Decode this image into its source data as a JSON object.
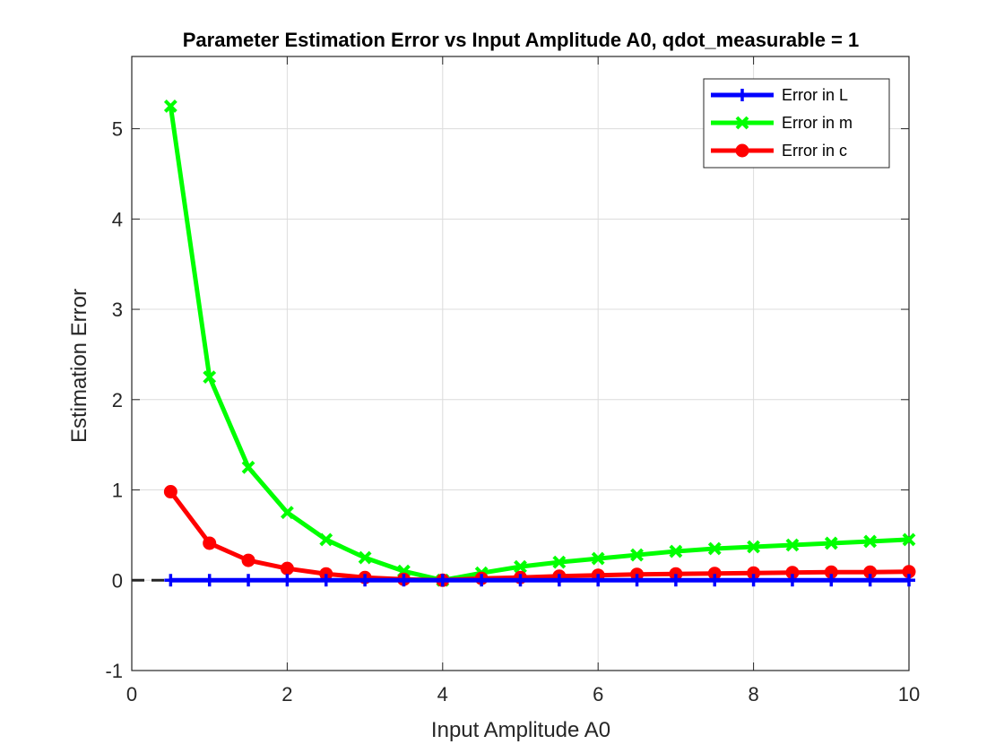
{
  "chart_data": {
    "type": "line",
    "title": "Parameter Estimation Error vs Input Amplitude A0, qdot_measurable = 1",
    "xlabel": "Input Amplitude A0",
    "ylabel": "Estimation Error",
    "xlim": [
      0,
      10
    ],
    "ylim": [
      -1,
      5.8
    ],
    "xticks": [
      0,
      2,
      4,
      6,
      8,
      10
    ],
    "yticks": [
      -1,
      0,
      1,
      2,
      3,
      4,
      5
    ],
    "xtick_labels": [
      "0",
      "2",
      "4",
      "6",
      "8",
      "10"
    ],
    "ytick_labels": [
      "-1",
      "0",
      "1",
      "2",
      "3",
      "4",
      "5"
    ],
    "grid": true,
    "legend_position": "top-right",
    "reference_line": {
      "y": 0,
      "style": "dashed",
      "color": "#262626"
    },
    "x": [
      0.5,
      1,
      1.5,
      2,
      2.5,
      3,
      3.5,
      4,
      4.5,
      5,
      5.5,
      6,
      6.5,
      7,
      7.5,
      8,
      8.5,
      9,
      9.5,
      10
    ],
    "series": [
      {
        "name": "Error in L",
        "color": "#0000ff",
        "marker": "plus",
        "values": [
          0,
          0,
          0,
          0,
          0,
          0,
          0,
          0,
          0,
          0,
          0,
          0,
          0,
          0,
          0,
          0,
          0,
          0,
          0,
          0
        ]
      },
      {
        "name": "Error in m",
        "color": "#00ff00",
        "marker": "x",
        "values": [
          5.25,
          2.25,
          1.25,
          0.75,
          0.45,
          0.25,
          0.1,
          0.0,
          0.08,
          0.15,
          0.2,
          0.24,
          0.28,
          0.32,
          0.35,
          0.37,
          0.39,
          0.41,
          0.43,
          0.45
        ]
      },
      {
        "name": "Error in c",
        "color": "#ff0000",
        "marker": "circle",
        "values": [
          0.98,
          0.41,
          0.22,
          0.13,
          0.07,
          0.03,
          0.01,
          0.0,
          0.02,
          0.03,
          0.045,
          0.055,
          0.065,
          0.07,
          0.075,
          0.08,
          0.085,
          0.09,
          0.09,
          0.095
        ]
      }
    ]
  }
}
